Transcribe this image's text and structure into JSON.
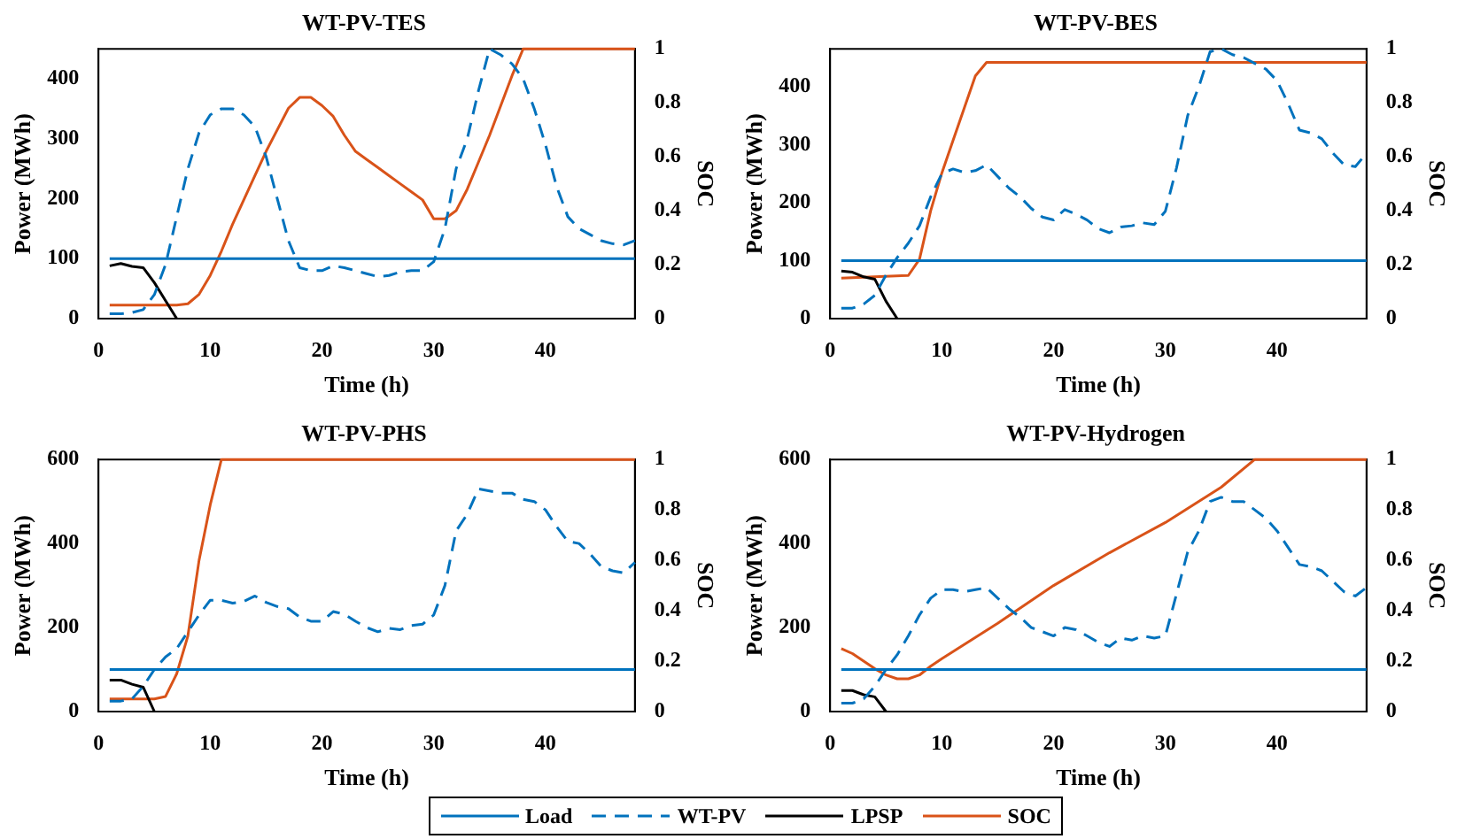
{
  "chart_data": [
    {
      "type": "line",
      "title": "WT-PV-TES",
      "xlabel": "Time (h)",
      "ylabel": "Power (MWh)",
      "y2label": "SOC",
      "xlim": [
        0,
        48
      ],
      "xticks": [
        0,
        10,
        20,
        30,
        40
      ],
      "ylim": [
        0,
        450
      ],
      "yticks": [
        0,
        100,
        200,
        300,
        400
      ],
      "y2lim": [
        0,
        1
      ],
      "y2ticks": [
        0,
        0.2,
        0.4,
        0.6,
        0.8,
        1
      ],
      "grid": false,
      "legend": "bottom",
      "series": [
        {
          "name": "Load",
          "color": "#0072bd",
          "line_style": "solid",
          "x": [
            1,
            48
          ],
          "values": [
            100,
            100
          ]
        },
        {
          "name": "WT-PV",
          "color": "#0072bd",
          "line_style": "dashed",
          "x": [
            1,
            2,
            3,
            4,
            5,
            6,
            7,
            8,
            9,
            10,
            11,
            12,
            13,
            14,
            15,
            16,
            17,
            18,
            19,
            20,
            21,
            22,
            23,
            24,
            25,
            26,
            27,
            28,
            29,
            30,
            31,
            32,
            33,
            34,
            35,
            36,
            37,
            38,
            39,
            40,
            41,
            42,
            43,
            44,
            45,
            46,
            47,
            48
          ],
          "values": [
            8,
            8,
            10,
            15,
            40,
            90,
            170,
            250,
            310,
            340,
            350,
            350,
            340,
            320,
            270,
            200,
            130,
            85,
            80,
            80,
            88,
            85,
            80,
            75,
            70,
            72,
            78,
            80,
            80,
            95,
            150,
            250,
            300,
            380,
            450,
            440,
            425,
            400,
            350,
            290,
            220,
            170,
            150,
            140,
            130,
            125,
            123,
            130
          ]
        },
        {
          "name": "LPSP",
          "color": "#000000",
          "line_style": "solid",
          "x": [
            1,
            2,
            3,
            4,
            5,
            6,
            7
          ],
          "values": [
            88,
            92,
            87,
            85,
            60,
            30,
            0
          ]
        },
        {
          "name": "SOC",
          "color": "#d95319",
          "line_style": "solid",
          "axis": "y2",
          "x": [
            1,
            7,
            8,
            9,
            10,
            11,
            12,
            13,
            14,
            15,
            16,
            17,
            18,
            19,
            20,
            21,
            22,
            23,
            24,
            25,
            26,
            27,
            28,
            29,
            30,
            31,
            32,
            33,
            34,
            35,
            36,
            37,
            38,
            48
          ],
          "values": [
            0.05,
            0.05,
            0.055,
            0.09,
            0.16,
            0.25,
            0.35,
            0.44,
            0.53,
            0.62,
            0.7,
            0.78,
            0.82,
            0.82,
            0.79,
            0.75,
            0.68,
            0.62,
            0.59,
            0.56,
            0.53,
            0.5,
            0.47,
            0.44,
            0.37,
            0.37,
            0.4,
            0.48,
            0.58,
            0.68,
            0.79,
            0.9,
            1,
            1
          ]
        }
      ]
    },
    {
      "type": "line",
      "title": "WT-PV-BES",
      "xlabel": "Time (h)",
      "ylabel": "Power (MWh)",
      "y2label": "SOC",
      "xlim": [
        0,
        48
      ],
      "xticks": [
        0,
        10,
        20,
        30,
        40
      ],
      "ylim": [
        0,
        465
      ],
      "yticks": [
        0,
        100,
        200,
        300,
        400
      ],
      "y2lim": [
        0,
        1
      ],
      "y2ticks": [
        0,
        0.2,
        0.4,
        0.6,
        0.8,
        1
      ],
      "grid": false,
      "series": [
        {
          "color": "#0072bd",
          "line_style": "solid",
          "x": [
            1,
            48
          ],
          "values": [
            100,
            100
          ]
        },
        {
          "color": "#0072bd",
          "line_style": "dashed",
          "x": [
            1,
            2,
            3,
            4,
            5,
            6,
            7,
            8,
            9,
            10,
            11,
            12,
            13,
            14,
            15,
            16,
            17,
            18,
            19,
            20,
            21,
            22,
            23,
            24,
            25,
            26,
            27,
            28,
            29,
            30,
            31,
            32,
            33,
            34,
            35,
            36,
            37,
            38,
            39,
            40,
            41,
            42,
            43,
            44,
            45,
            46,
            47,
            48
          ],
          "values": [
            18,
            18,
            25,
            40,
            75,
            105,
            130,
            160,
            210,
            250,
            258,
            252,
            255,
            265,
            245,
            225,
            210,
            190,
            175,
            170,
            188,
            180,
            170,
            155,
            148,
            158,
            160,
            165,
            162,
            185,
            260,
            350,
            400,
            460,
            465,
            455,
            450,
            440,
            430,
            410,
            370,
            325,
            320,
            310,
            285,
            265,
            262,
            285
          ]
        },
        {
          "color": "#000000",
          "line_style": "solid",
          "x": [
            1,
            2,
            3,
            4,
            5,
            6
          ],
          "values": [
            82,
            80,
            72,
            68,
            30,
            0
          ]
        },
        {
          "color": "#d95319",
          "line_style": "solid",
          "axis": "y2",
          "x": [
            1,
            7,
            8,
            9,
            10,
            11,
            12,
            13,
            14,
            48
          ],
          "values": [
            0.15,
            0.16,
            0.22,
            0.4,
            0.54,
            0.66,
            0.78,
            0.9,
            0.95,
            0.95
          ]
        }
      ]
    },
    {
      "type": "line",
      "title": "WT-PV-PHS",
      "xlabel": "Time (h)",
      "ylabel": "Power (MWh)",
      "y2label": "SOC",
      "xlim": [
        0,
        48
      ],
      "xticks": [
        0,
        10,
        20,
        30,
        40
      ],
      "ylim": [
        0,
        600
      ],
      "yticks": [
        0,
        200,
        400,
        600
      ],
      "y2lim": [
        0,
        1
      ],
      "y2ticks": [
        0,
        0.2,
        0.4,
        0.6,
        0.8,
        1
      ],
      "grid": false,
      "series": [
        {
          "color": "#0072bd",
          "line_style": "solid",
          "x": [
            1,
            48
          ],
          "values": [
            100,
            100
          ]
        },
        {
          "color": "#0072bd",
          "line_style": "dashed",
          "x": [
            1,
            2,
            3,
            4,
            5,
            6,
            7,
            8,
            9,
            10,
            11,
            12,
            13,
            14,
            15,
            16,
            17,
            18,
            19,
            20,
            21,
            22,
            23,
            24,
            25,
            26,
            27,
            28,
            29,
            30,
            31,
            32,
            33,
            34,
            35,
            36,
            37,
            38,
            39,
            40,
            41,
            42,
            43,
            44,
            45,
            46,
            47,
            48
          ],
          "values": [
            25,
            25,
            30,
            60,
            100,
            130,
            150,
            190,
            230,
            265,
            265,
            258,
            262,
            275,
            260,
            250,
            245,
            225,
            215,
            215,
            238,
            232,
            215,
            200,
            190,
            198,
            195,
            205,
            208,
            230,
            300,
            430,
            470,
            530,
            525,
            520,
            520,
            505,
            500,
            480,
            440,
            405,
            400,
            375,
            345,
            335,
            330,
            355
          ]
        },
        {
          "color": "#000000",
          "line_style": "solid",
          "x": [
            1,
            2,
            3,
            4,
            5
          ],
          "values": [
            75,
            75,
            65,
            58,
            0
          ]
        },
        {
          "color": "#d95319",
          "line_style": "solid",
          "axis": "y2",
          "x": [
            1,
            5,
            6,
            7,
            8,
            9,
            10,
            11,
            48
          ],
          "values": [
            0.05,
            0.05,
            0.06,
            0.15,
            0.3,
            0.6,
            0.82,
            1,
            1
          ]
        }
      ]
    },
    {
      "type": "line",
      "title": "WT-PV-Hydrogen",
      "xlabel": "Time (h)",
      "ylabel": "Power (MWh)",
      "y2label": "SOC",
      "xlim": [
        0,
        48
      ],
      "xticks": [
        0,
        10,
        20,
        30,
        40
      ],
      "ylim": [
        0,
        600
      ],
      "yticks": [
        0,
        200,
        400,
        600
      ],
      "y2lim": [
        0,
        1
      ],
      "y2ticks": [
        0,
        0.2,
        0.4,
        0.6,
        0.8,
        1
      ],
      "grid": false,
      "series": [
        {
          "color": "#0072bd",
          "line_style": "solid",
          "x": [
            1,
            48
          ],
          "values": [
            100,
            100
          ]
        },
        {
          "color": "#0072bd",
          "line_style": "dashed",
          "x": [
            1,
            2,
            3,
            4,
            5,
            6,
            7,
            8,
            9,
            10,
            11,
            12,
            13,
            14,
            15,
            16,
            17,
            18,
            19,
            20,
            21,
            22,
            23,
            24,
            25,
            26,
            27,
            28,
            29,
            30,
            31,
            32,
            33,
            34,
            35,
            36,
            37,
            38,
            39,
            40,
            41,
            42,
            43,
            44,
            45,
            46,
            47,
            48
          ],
          "values": [
            20,
            20,
            30,
            60,
            100,
            135,
            180,
            230,
            270,
            290,
            290,
            285,
            290,
            295,
            270,
            245,
            225,
            200,
            190,
            180,
            200,
            195,
            180,
            165,
            155,
            175,
            170,
            180,
            175,
            180,
            280,
            380,
            430,
            500,
            510,
            500,
            500,
            480,
            460,
            430,
            390,
            350,
            345,
            335,
            310,
            285,
            275,
            295
          ]
        },
        {
          "color": "#000000",
          "line_style": "solid",
          "x": [
            1,
            2,
            3,
            4,
            5
          ],
          "values": [
            50,
            50,
            40,
            35,
            0
          ]
        },
        {
          "color": "#d95319",
          "line_style": "solid",
          "axis": "y2",
          "x": [
            1,
            2,
            3,
            4,
            5,
            6,
            7,
            8,
            9,
            10,
            15,
            20,
            25,
            30,
            35,
            38,
            48
          ],
          "values": [
            0.25,
            0.23,
            0.2,
            0.17,
            0.145,
            0.13,
            0.13,
            0.145,
            0.18,
            0.21,
            0.35,
            0.5,
            0.63,
            0.75,
            0.89,
            1,
            1
          ]
        }
      ]
    }
  ]
}
